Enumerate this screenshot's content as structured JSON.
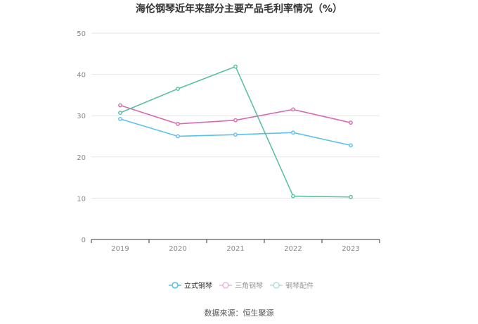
{
  "chart_data": {
    "type": "line",
    "title": "海伦钢琴近年来部分主要产品毛利率情况（%）",
    "xlabel": "",
    "ylabel": "",
    "categories": [
      "2019",
      "2020",
      "2021",
      "2022",
      "2023"
    ],
    "ylim": [
      0,
      50
    ],
    "yticks": [
      0,
      10,
      20,
      30,
      40,
      50
    ],
    "grid": true,
    "legend_position": "bottom",
    "series": [
      {
        "name": "立式钢琴",
        "color": "#5bc0eb",
        "values": [
          29.2,
          25.0,
          25.4,
          25.9,
          22.8
        ]
      },
      {
        "name": "三角钢琴",
        "color": "#d66bb4",
        "values": [
          32.5,
          28.0,
          28.9,
          31.5,
          28.3
        ]
      },
      {
        "name": "钢琴配件",
        "color": "#5cbfa3",
        "values": [
          30.7,
          36.5,
          41.9,
          10.5,
          10.3
        ]
      }
    ]
  },
  "source_text": "数据来源：恒生聚源"
}
